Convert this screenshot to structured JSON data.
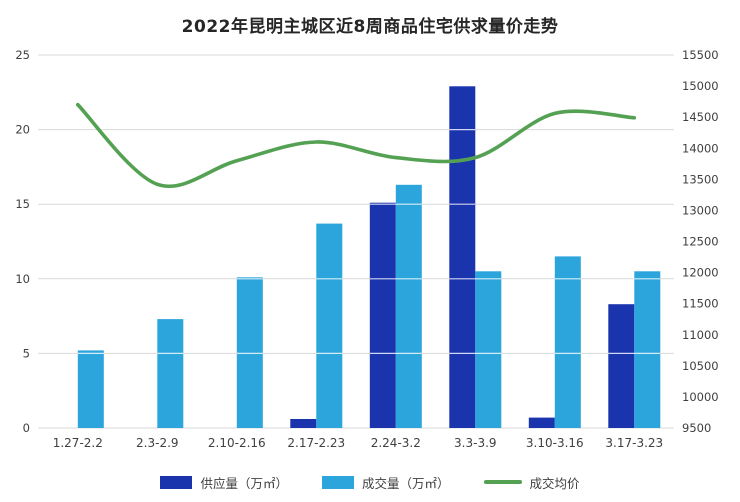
{
  "title": "2022年昆明主城区近8周商品住宅供求量价走势",
  "colors": {
    "supply_bar": "#1a34ae",
    "volume_bar": "#2ca5dc",
    "price_line": "#54a154",
    "gridline": "#d9d9d9",
    "overlay_gridline": "#ffffff",
    "axis_text": "#404040",
    "background": "#ffffff"
  },
  "chart_data": {
    "type": "bar",
    "subtype": "grouped-bars-with-smooth-line-dual-axis",
    "title": "2022年昆明主城区近8周商品住宅供求量价走势",
    "categories": [
      "1.27-2.2",
      "2.3-2.9",
      "2.10-2.16",
      "2.17-2.23",
      "2.24-3.2",
      "3.3-3.9",
      "3.10-3.16",
      "3.17-3.23"
    ],
    "series": [
      {
        "name": "供应量（万㎡）",
        "type": "bar",
        "axis": "left",
        "color_key": "supply_bar",
        "values": [
          0,
          0,
          0,
          0.6,
          15.1,
          22.9,
          0.7,
          8.3
        ]
      },
      {
        "name": "成交量（万㎡）",
        "type": "bar",
        "axis": "left",
        "color_key": "volume_bar",
        "values": [
          5.2,
          7.3,
          10.1,
          13.7,
          16.3,
          10.5,
          11.5,
          10.5
        ]
      },
      {
        "name": "成交均价",
        "type": "line",
        "axis": "right",
        "color_key": "price_line",
        "values": [
          14700,
          13420,
          13800,
          14100,
          13850,
          13850,
          14560,
          14490
        ]
      }
    ],
    "left_axis": {
      "min": 0,
      "max": 25,
      "step": 5,
      "tick_labels": [
        "0",
        "5",
        "10",
        "15",
        "20",
        "25"
      ]
    },
    "right_axis": {
      "min": 9500,
      "max": 15500,
      "step": 500,
      "tick_labels": [
        "9500",
        "10000",
        "10500",
        "11000",
        "11500",
        "12000",
        "12500",
        "13000",
        "13500",
        "14000",
        "14500",
        "15000",
        "15500"
      ]
    },
    "grid": true,
    "legend_position": "bottom"
  },
  "legend": {
    "items": [
      {
        "label": "供应量（万㎡）",
        "swatch": "bar",
        "color_key": "supply_bar"
      },
      {
        "label": "成交量（万㎡）",
        "swatch": "bar",
        "color_key": "volume_bar"
      },
      {
        "label": "成交均价",
        "swatch": "line",
        "color_key": "price_line"
      }
    ]
  }
}
